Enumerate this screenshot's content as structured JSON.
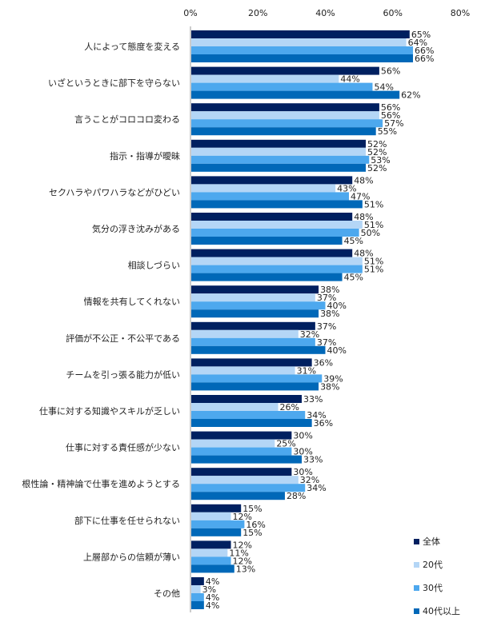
{
  "chart_data": {
    "type": "bar",
    "orientation": "horizontal",
    "categories": [
      "人によって態度を変える",
      "いざというときに部下を守らない",
      "言うことがコロコロ変わる",
      "指示・指導が曖昧",
      "セクハラやパワハラなどがひどい",
      "気分の浮き沈みがある",
      "相談しづらい",
      "情報を共有してくれない",
      "評価が不公正・不公平である",
      "チームを引っ張る能力が低い",
      "仕事に対する知識やスキルが乏しい",
      "仕事に対する責任感が少ない",
      "根性論・精神論で仕事を進めようとする",
      "部下に仕事を任せられない",
      "上層部からの信頼が薄い",
      "その他"
    ],
    "series": [
      {
        "name": "全体",
        "color": "#002060",
        "values": [
          65,
          56,
          56,
          52,
          48,
          48,
          48,
          38,
          37,
          36,
          33,
          30,
          30,
          15,
          12,
          4
        ]
      },
      {
        "name": "20代",
        "color": "#B4D6F6",
        "values": [
          64,
          44,
          56,
          52,
          43,
          51,
          51,
          37,
          32,
          31,
          26,
          25,
          32,
          12,
          11,
          3
        ]
      },
      {
        "name": "30代",
        "color": "#4DA8EE",
        "values": [
          66,
          54,
          57,
          53,
          47,
          50,
          51,
          40,
          37,
          39,
          34,
          30,
          34,
          16,
          12,
          4
        ]
      },
      {
        "name": "40代以上",
        "color": "#0068B8",
        "values": [
          66,
          62,
          55,
          52,
          51,
          45,
          45,
          38,
          40,
          38,
          36,
          33,
          28,
          15,
          13,
          4
        ]
      }
    ],
    "xlim": [
      0,
      80
    ],
    "xticks": [
      "0%",
      "20%",
      "40%",
      "60%",
      "80%"
    ],
    "value_suffix": "%",
    "grid": false,
    "legend": "bottom-right"
  }
}
